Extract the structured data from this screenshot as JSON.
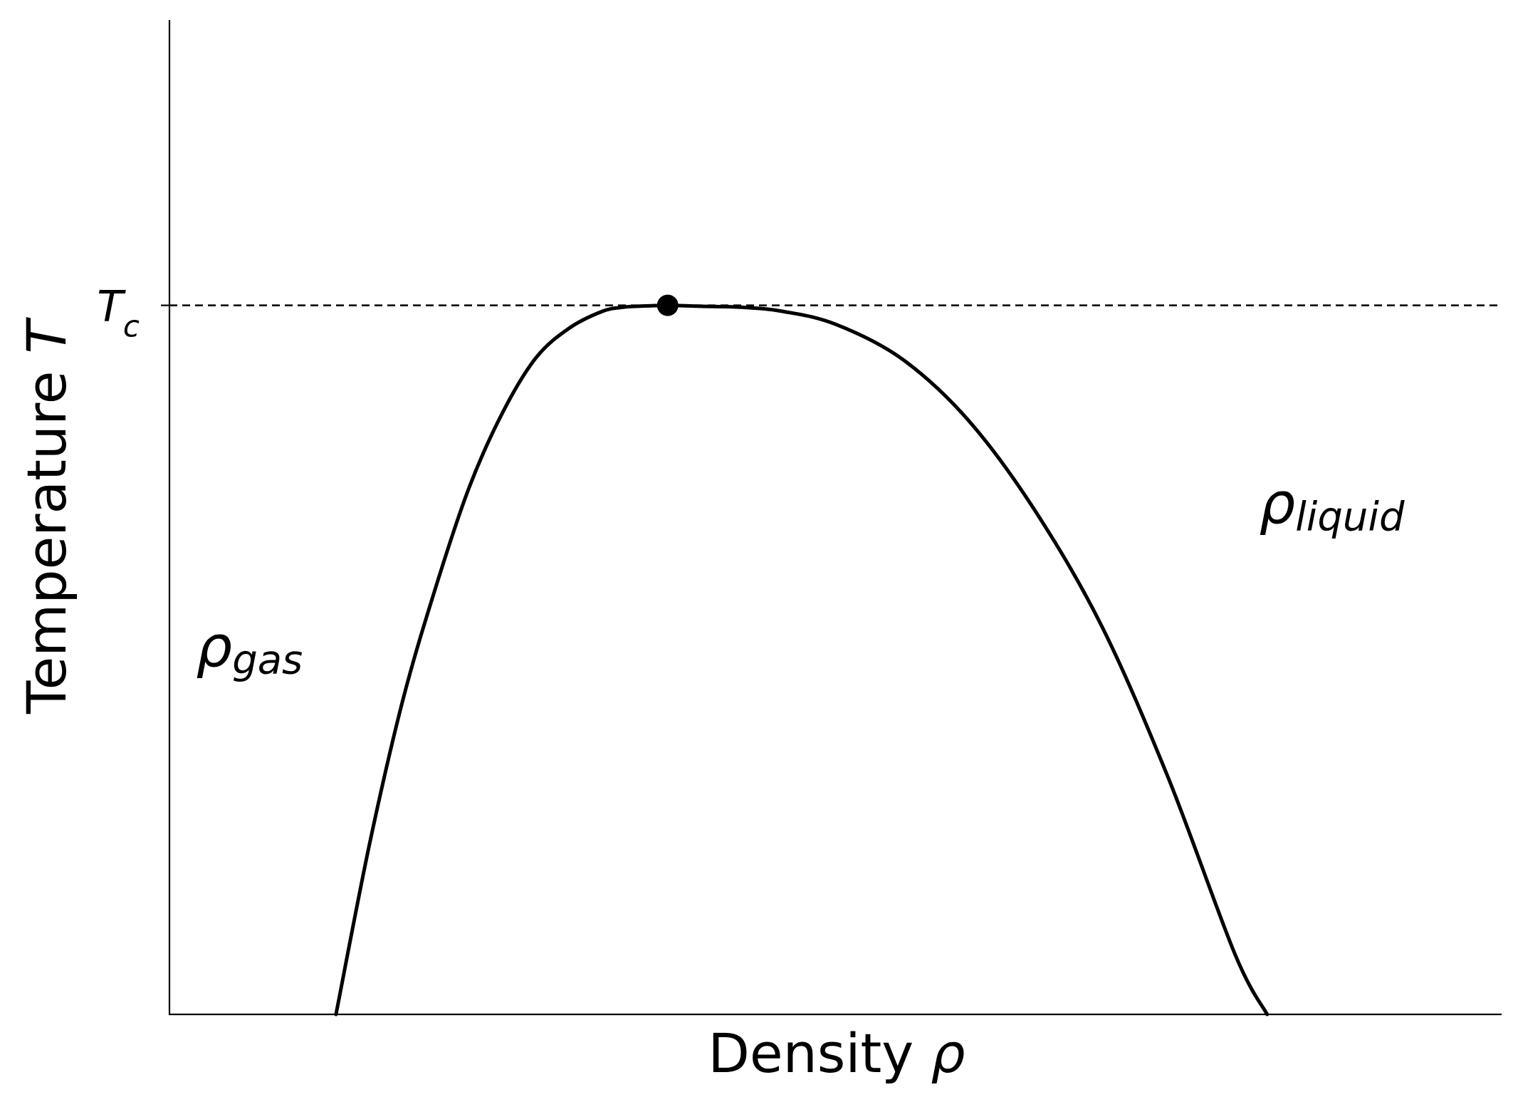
{
  "chart_data": {
    "type": "line",
    "title": "",
    "xlabel": {
      "text": "Density ",
      "symbol": "ρ"
    },
    "ylabel": {
      "text": "Temperature ",
      "symbol": "T"
    },
    "xlim": [
      0,
      1
    ],
    "ylim": [
      0,
      1
    ],
    "xticks": [],
    "yticks": [
      {
        "value": 0.713,
        "label_base": "T",
        "label_sub": "c"
      }
    ],
    "reference_lines": [
      {
        "orientation": "horizontal",
        "y": 0.713,
        "style": "dashed"
      }
    ],
    "critical_point": {
      "x": 0.374,
      "y": 0.713
    },
    "series": [
      {
        "style": "solid",
        "x": [
          0.125,
          0.15,
          0.175,
          0.2,
          0.225,
          0.25,
          0.275,
          0.3,
          0.325,
          0.34,
          0.35,
          0.374,
          0.4,
          0.43,
          0.46,
          0.5,
          0.55,
          0.6,
          0.65,
          0.7,
          0.75,
          0.8,
          0.824
        ],
        "y": [
          0.0,
          0.17,
          0.315,
          0.43,
          0.53,
          0.605,
          0.66,
          0.69,
          0.707,
          0.711,
          0.712,
          0.713,
          0.712,
          0.711,
          0.707,
          0.694,
          0.659,
          0.597,
          0.506,
          0.39,
          0.237,
          0.06,
          0.0
        ]
      }
    ],
    "annotations": [
      {
        "base": "ρ",
        "sub": "gas",
        "x": 0.02,
        "y": 0.35
      },
      {
        "base": "ρ",
        "sub": "liquid",
        "x": 0.818,
        "y": 0.494
      }
    ],
    "grid": false,
    "legend": "none"
  }
}
